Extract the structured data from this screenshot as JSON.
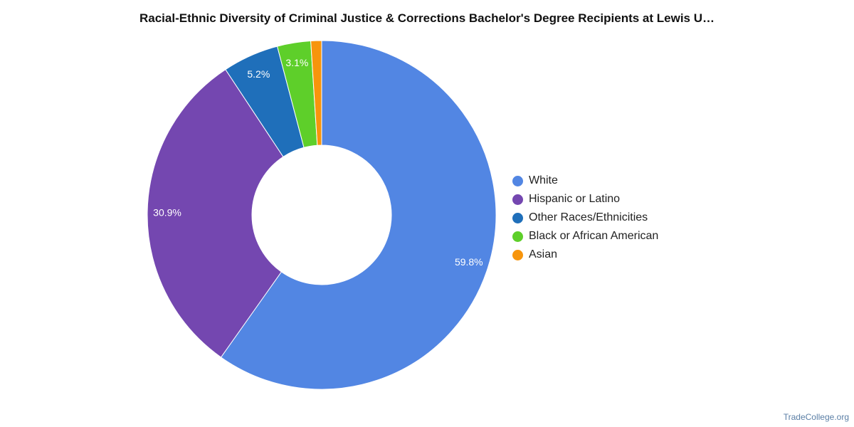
{
  "chart_data": {
    "type": "pie",
    "title": "Racial-Ethnic Diversity of Criminal Justice & Corrections Bachelor's Degree Recipients at Lewis U…",
    "slices": [
      {
        "label": "White",
        "value": 59.8,
        "value_label": "59.8%",
        "color": "#5286e3"
      },
      {
        "label": "Hispanic or Latino",
        "value": 30.9,
        "value_label": "30.9%",
        "color": "#7447b0"
      },
      {
        "label": "Other Races/Ethnicities",
        "value": 5.2,
        "value_label": "5.2%",
        "color": "#1f6fba"
      },
      {
        "label": "Black or African American",
        "value": 3.1,
        "value_label": "3.1%",
        "color": "#5ecf2a"
      },
      {
        "label": "Asian",
        "value": 1.0,
        "value_label": "",
        "color": "#f7950c"
      }
    ],
    "donut": true,
    "legend_position": "right"
  },
  "footer": {
    "source": "TradeCollege.org"
  }
}
